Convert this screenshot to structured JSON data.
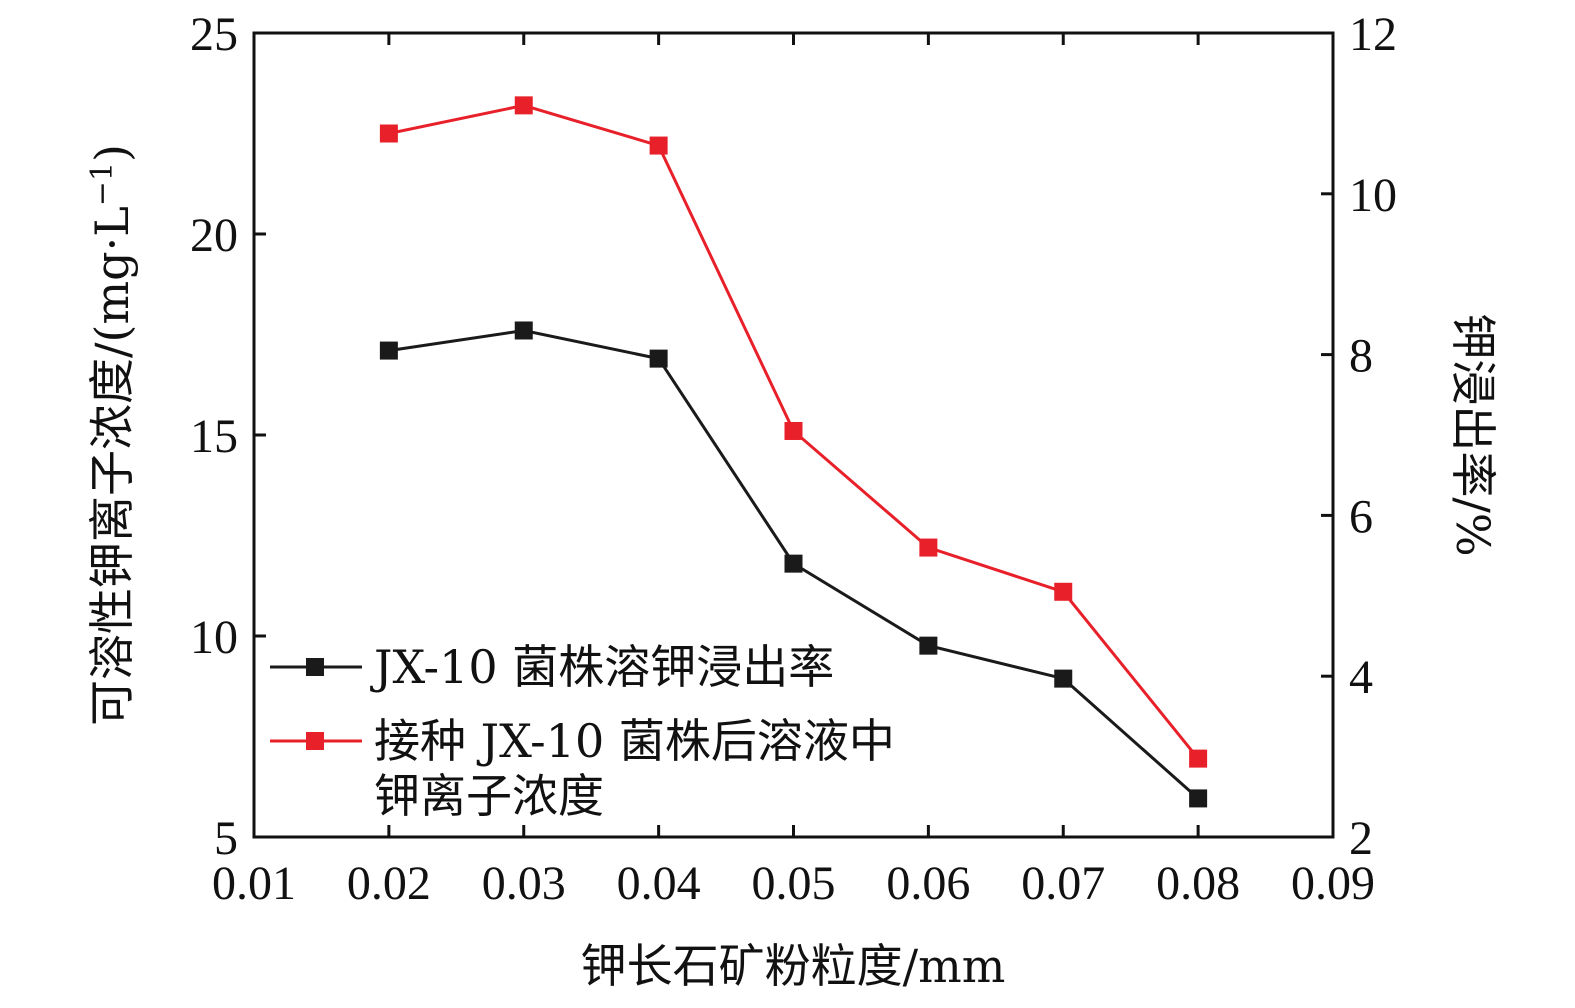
{
  "chart_data": {
    "type": "line",
    "xlabel": "钾长石矿粉粒度/mm",
    "ylabel_left": "可溶性钾离子浓度/(mg·L",
    "ylabel_left_sup": "−1",
    "ylabel_left_close": ")",
    "ylabel_right": "钾浸出率/%",
    "xlim": [
      0.01,
      0.09
    ],
    "xticks": [
      "0.01",
      "0.02",
      "0.03",
      "0.04",
      "0.05",
      "0.06",
      "0.07",
      "0.08",
      "0.09"
    ],
    "ylim_left": [
      5,
      25
    ],
    "yticks_left": [
      "5",
      "10",
      "15",
      "20",
      "25"
    ],
    "ylim_right": [
      2,
      12
    ],
    "yticks_right": [
      "2",
      "4",
      "6",
      "8",
      "10",
      "12"
    ],
    "grid": false,
    "legend_position": "lower-left",
    "series": [
      {
        "name": "JX-10 菌株溶钾浸出率",
        "axis": "right",
        "color": "#1a1a1a",
        "marker": "square",
        "x": [
          0.02,
          0.03,
          0.04,
          0.05,
          0.06,
          0.07,
          0.08
        ],
        "y": [
          8.05,
          8.3,
          7.95,
          5.4,
          4.38,
          3.97,
          2.48
        ]
      },
      {
        "name_lines": [
          "接种 JX-10 菌株后溶液中",
          "钾离子浓度"
        ],
        "axis": "left",
        "color": "#e8202a",
        "marker": "square",
        "x": [
          0.02,
          0.03,
          0.04,
          0.05,
          0.06,
          0.07,
          0.08
        ],
        "y": [
          22.5,
          23.2,
          22.2,
          15.1,
          12.2,
          11.1,
          6.95
        ]
      }
    ]
  }
}
